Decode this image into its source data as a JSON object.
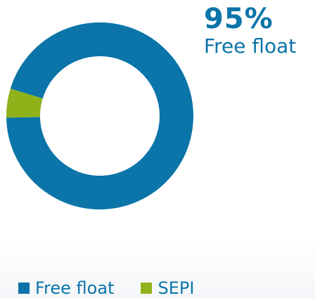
{
  "headline": {
    "value": "95%",
    "label": "Free float"
  },
  "colors": {
    "free_float": "#0b74a8",
    "sepi": "#8fb21b"
  },
  "chart_data": {
    "type": "pie",
    "variant": "donut",
    "categories": [
      "Free float",
      "SEPI"
    ],
    "values": [
      95,
      5
    ],
    "legend_placement": "bottom"
  }
}
